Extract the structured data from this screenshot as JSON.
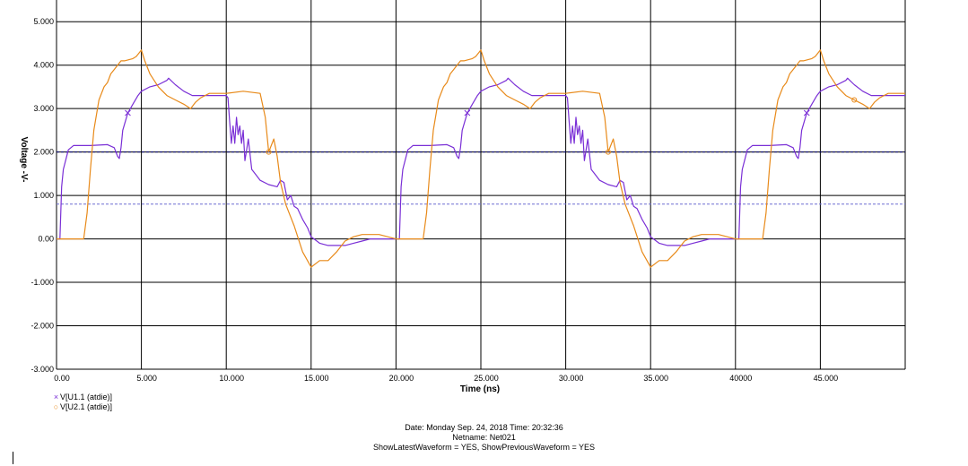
{
  "chart_data": {
    "type": "line",
    "xlabel": "Time (ns)",
    "ylabel": "Voltage -V-",
    "xlim": [
      0,
      50000
    ],
    "ylim": [
      -3.0,
      5.5
    ],
    "grid": true,
    "x_ticks": [
      "0.00",
      "5.000",
      "10.000",
      "15.000",
      "20.000",
      "25.000",
      "30.000",
      "35.000",
      "40000",
      "45.000"
    ],
    "x_tick_values": [
      0,
      5000,
      10000,
      15000,
      20000,
      25000,
      30000,
      35000,
      40000,
      45000
    ],
    "y_ticks": [
      "5.000",
      "4.000",
      "3.000",
      "2.000",
      "1.000",
      "0.00",
      "-1.000",
      "-2.000",
      "-3.000"
    ],
    "y_tick_values": [
      5,
      4,
      3,
      2,
      1,
      0,
      -1,
      -2,
      -3
    ],
    "threshold_lines": [
      {
        "value": 2.0,
        "color": "#00006e",
        "style": "dashed"
      },
      {
        "value": 0.8,
        "color": "#6e6ed2",
        "style": "dashed"
      }
    ],
    "period": 20000,
    "series": [
      {
        "name": "V[U1.1 (atdie)]",
        "color": "#7a2fd6",
        "marker": "×",
        "points": [
          [
            0,
            0.0
          ],
          [
            200,
            0.0
          ],
          [
            300,
            1.2
          ],
          [
            400,
            1.6
          ],
          [
            700,
            2.05
          ],
          [
            1000,
            2.15
          ],
          [
            2000,
            2.15
          ],
          [
            3000,
            2.17
          ],
          [
            3400,
            2.1
          ],
          [
            3500,
            2.0
          ],
          [
            3600,
            1.9
          ],
          [
            3700,
            1.85
          ],
          [
            3800,
            2.1
          ],
          [
            3900,
            2.5
          ],
          [
            4200,
            2.9
          ],
          [
            4500,
            3.1
          ],
          [
            4800,
            3.3
          ],
          [
            5000,
            3.4
          ],
          [
            5500,
            3.5
          ],
          [
            6000,
            3.55
          ],
          [
            6500,
            3.65
          ],
          [
            6600,
            3.7
          ],
          [
            7000,
            3.55
          ],
          [
            7500,
            3.4
          ],
          [
            8000,
            3.3
          ],
          [
            9000,
            3.3
          ],
          [
            10000,
            3.3
          ],
          [
            10100,
            3.25
          ],
          [
            10200,
            2.7
          ],
          [
            10300,
            2.2
          ],
          [
            10400,
            2.6
          ],
          [
            10500,
            2.2
          ],
          [
            10600,
            2.8
          ],
          [
            10700,
            2.4
          ],
          [
            10800,
            2.6
          ],
          [
            10900,
            2.2
          ],
          [
            11000,
            2.5
          ],
          [
            11100,
            1.8
          ],
          [
            11300,
            2.3
          ],
          [
            11500,
            1.6
          ],
          [
            11700,
            1.5
          ],
          [
            12000,
            1.35
          ],
          [
            12500,
            1.25
          ],
          [
            13000,
            1.2
          ],
          [
            13200,
            1.35
          ],
          [
            13400,
            1.3
          ],
          [
            13600,
            0.9
          ],
          [
            13800,
            1.0
          ],
          [
            14000,
            0.75
          ],
          [
            14200,
            0.7
          ],
          [
            14500,
            0.45
          ],
          [
            14800,
            0.25
          ],
          [
            15000,
            0.05
          ],
          [
            15500,
            -0.1
          ],
          [
            16000,
            -0.15
          ],
          [
            17000,
            -0.15
          ],
          [
            17500,
            -0.1
          ],
          [
            18000,
            -0.05
          ],
          [
            18500,
            0.0
          ],
          [
            19000,
            0.0
          ],
          [
            20000,
            0.0
          ]
        ]
      },
      {
        "name": "V[U2.1 (atdie)]",
        "color": "#e88a1a",
        "marker": "○",
        "points": [
          [
            0,
            0.0
          ],
          [
            1600,
            0.0
          ],
          [
            1800,
            0.6
          ],
          [
            2000,
            1.6
          ],
          [
            2200,
            2.5
          ],
          [
            2500,
            3.2
          ],
          [
            2800,
            3.5
          ],
          [
            3000,
            3.6
          ],
          [
            3200,
            3.8
          ],
          [
            3400,
            3.9
          ],
          [
            3600,
            4.0
          ],
          [
            3800,
            4.1
          ],
          [
            4000,
            4.1
          ],
          [
            4500,
            4.15
          ],
          [
            4700,
            4.2
          ],
          [
            4900,
            4.3
          ],
          [
            5000,
            4.35
          ],
          [
            5200,
            4.1
          ],
          [
            5500,
            3.8
          ],
          [
            6000,
            3.5
          ],
          [
            6500,
            3.3
          ],
          [
            7000,
            3.2
          ],
          [
            7500,
            3.1
          ],
          [
            7900,
            3.0
          ],
          [
            8200,
            3.15
          ],
          [
            8500,
            3.25
          ],
          [
            9000,
            3.35
          ],
          [
            9500,
            3.35
          ],
          [
            10000,
            3.35
          ],
          [
            11000,
            3.4
          ],
          [
            12000,
            3.35
          ],
          [
            12300,
            2.8
          ],
          [
            12500,
            2.0
          ],
          [
            12800,
            2.3
          ],
          [
            13000,
            1.9
          ],
          [
            13200,
            1.3
          ],
          [
            13500,
            0.8
          ],
          [
            14000,
            0.3
          ],
          [
            14500,
            -0.3
          ],
          [
            15000,
            -0.65
          ],
          [
            15500,
            -0.5
          ],
          [
            16000,
            -0.5
          ],
          [
            16500,
            -0.3
          ],
          [
            17000,
            -0.05
          ],
          [
            17500,
            0.05
          ],
          [
            18000,
            0.1
          ],
          [
            19000,
            0.1
          ],
          [
            20000,
            0.0
          ]
        ]
      }
    ]
  },
  "footer": {
    "date_line": "Date: Monday Sep. 24, 2018  Time: 20:32:36",
    "netname_line": "Netname: Net021",
    "options_line": "ShowLatestWaveform = YES,  ShowPreviousWaveform = YES"
  }
}
